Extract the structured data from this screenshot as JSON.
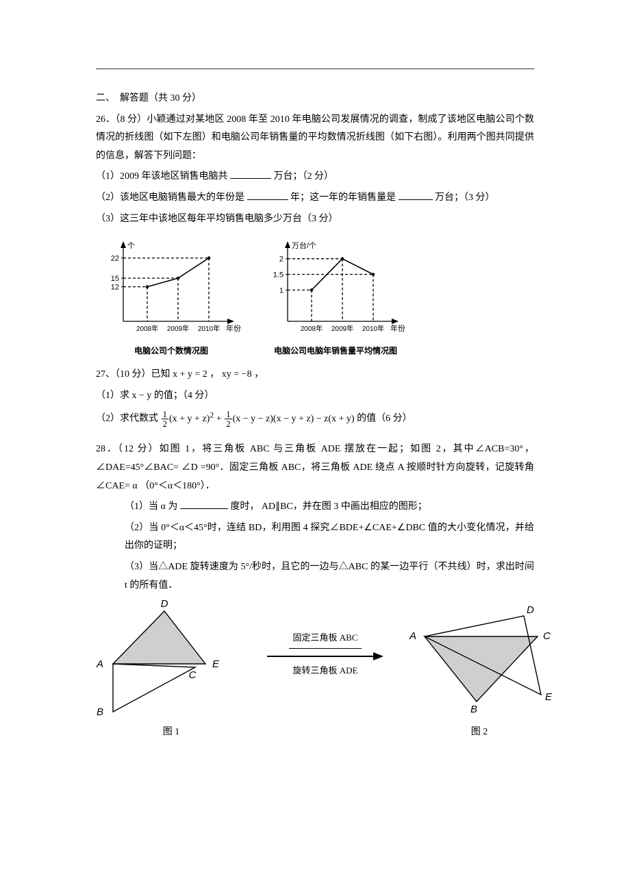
{
  "section_heading": "二、　解答题（共 30 分）",
  "q26": {
    "stem": "26．（8 分）小颖通过对某地区 2008 年至 2010 年电脑公司发展情况的调查，制成了该地区电脑公司个数情况的折线图（如下左图）和电脑公司年销售量的平均数情况折线图（如下右图）。利用两个图共同提供的信息，解答下列问题：",
    "s1_a": "（1）2009 年该地区销售电脑共",
    "s1_b": "万台；（2 分）",
    "s2_a": "（2）该地区电脑销售最大的年份是",
    "s2_b": "年；这一年的年销售量是",
    "s2_c": "万台；（3 分）",
    "s3": "（3）这三年中该地区每年平均销售电脑多少万台（3 分）"
  },
  "chart1": {
    "caption": "电脑公司个数情况图",
    "y_label": "个",
    "x_label": "年份",
    "y_ticks": [
      12,
      15,
      22
    ],
    "x_ticks": [
      "2008年",
      "2009年",
      "2010年"
    ],
    "values": [
      12,
      15,
      22
    ],
    "axis_color": "#000000",
    "line_color": "#000000",
    "bg": "#ffffff"
  },
  "chart2": {
    "caption": "电脑公司电脑年销售量平均情况图",
    "y_label": "万台/个",
    "x_label": "年份",
    "y_ticks": [
      1.0,
      1.5,
      2.0
    ],
    "x_ticks": [
      "2008年",
      "2009年",
      "2010年"
    ],
    "values": [
      1.0,
      2.0,
      1.5
    ],
    "axis_color": "#000000",
    "line_color": "#000000",
    "bg": "#ffffff"
  },
  "q27": {
    "stem_a": "27、（10 分）已知 ",
    "stem_eq": "x + y = 2 ，  xy = −8 ，",
    "s1": "（1）求 x − y 的值；（4 分）",
    "s2_a": "（2）求代数式",
    "s2_b": "的值（6 分）",
    "expr_parts": {
      "half": {
        "num": "1",
        "den": "2"
      },
      "g1": "(x + y + z)",
      "sq": "2",
      "g2": "(x − y − z)(x − y + z) − z(x + y)"
    }
  },
  "q28": {
    "stem": "28．（12 分）如图 1，将三角板 ABC 与三角板 ADE 摆放在一起；如图 2，其中∠ACB=30°，∠DAE=45°∠BAC= ∠D =90°．固定三角板 ABC，将三角板 ADE 绕点 A 按顺时针方向旋转，记旋转角∠CAE= α （0°＜α＜180°）．",
    "s1_a": "（1）当 α 为",
    "s1_b": "度时，  AD∥BC，并在图 3 中画出相应的图形；",
    "s2": "（2）当 0°＜α＜45°时，连结 BD，利用图 4 探究∠BDE+∠CAE+∠DBC 值的大小变化情况，并给出你的证明；",
    "s3": "（3）当△ADE 旋转速度为 5°/秒时，且它的一边与△ABC 的某一边平行（不共线）时，求出时间 t 的所有值．"
  },
  "figs": {
    "arrow_top": "固定三角板 ABC",
    "arrow_bottom": "旋转三角板 ADE",
    "cap1": "图 1",
    "cap2": "图 2",
    "tri_fill": "#cfcfcf",
    "stroke": "#000000",
    "labels1": {
      "A": "A",
      "B": "B",
      "C": "C",
      "D": "D",
      "E": "E"
    },
    "labels2": {
      "A": "A",
      "B": "B",
      "C": "C",
      "D": "D",
      "E": "E"
    }
  }
}
